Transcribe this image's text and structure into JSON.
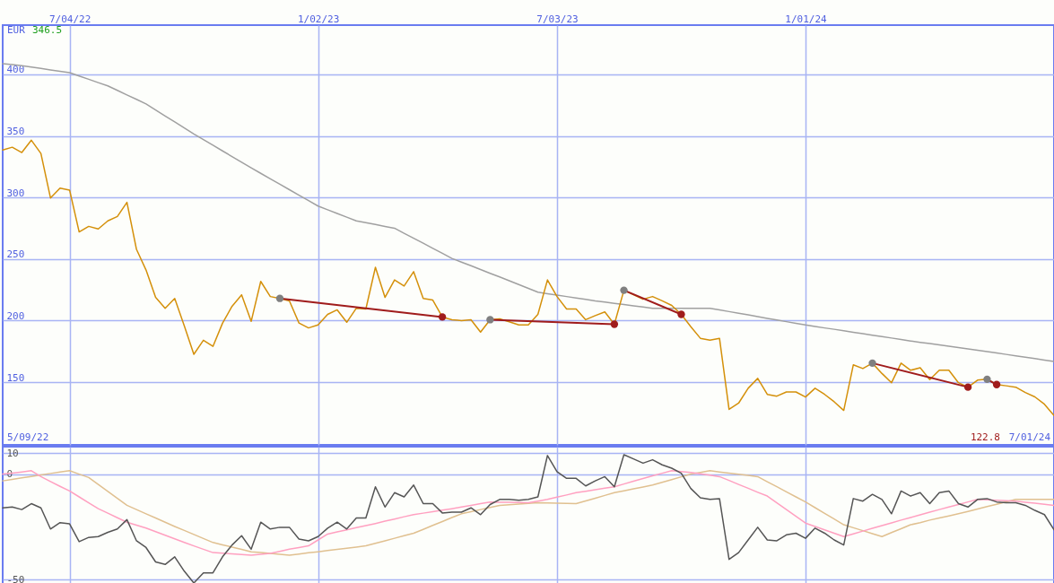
{
  "chart_data": [
    {
      "type": "line",
      "categories": [
        null,
        null,
        null,
        null,
        null,
        null,
        null,
        "7/04/22",
        null,
        null,
        null,
        null,
        null,
        null,
        null,
        null,
        null,
        null,
        null,
        null,
        null,
        null,
        null,
        null,
        null,
        null,
        null,
        null,
        null,
        null,
        null,
        null,
        null,
        "1/02/23",
        null,
        null,
        null,
        null,
        null,
        null,
        null,
        null,
        null,
        null,
        null,
        null,
        null,
        null,
        null,
        null,
        null,
        null,
        null,
        null,
        null,
        null,
        null,
        null,
        "7/03/23",
        null,
        null,
        null,
        null,
        null,
        null,
        null,
        null,
        null,
        null,
        null,
        null,
        null,
        null,
        null,
        null,
        null,
        null,
        null,
        null,
        null,
        null,
        null,
        null,
        null,
        "1/01/24",
        null,
        null,
        null,
        null,
        null,
        null,
        null,
        null,
        null,
        null,
        null,
        null,
        null,
        null,
        null,
        null,
        null,
        null,
        null,
        null,
        null,
        null,
        null,
        null,
        null,
        null
      ],
      "ylim": [
        99,
        440
      ],
      "yticks": [
        150,
        200,
        250,
        300,
        350,
        400
      ],
      "grid": true,
      "annotations": [
        "EUR",
        "346.5",
        "5/09/22",
        "122.8",
        "7/01/24"
      ],
      "series": [
        {
          "color": "#a0a0a0",
          "values": [
            408.7,
            407.9,
            407,
            405.9,
            404.8,
            403.6,
            402.5,
            401.4,
            398.7,
            396,
            393.3,
            390.6,
            387,
            383.3,
            379.7,
            376,
            371.1,
            366.2,
            361.4,
            356.5,
            351.6,
            347,
            342.4,
            337.8,
            333.2,
            328.6,
            324,
            319.6,
            315.1,
            310.7,
            306.3,
            301.9,
            297.4,
            293,
            290,
            287,
            284,
            281,
            279.5,
            278,
            276.5,
            275,
            270.9,
            266.8,
            262.8,
            258.7,
            254.6,
            250.5,
            247.5,
            244.5,
            241.4,
            238.4,
            235.4,
            232.3,
            229.2,
            226.1,
            223,
            221.8,
            220.7,
            219.5,
            218.3,
            217.2,
            216,
            215,
            214,
            213,
            212,
            211,
            210,
            210,
            210,
            210,
            210,
            210,
            210,
            208.6,
            207.3,
            205.9,
            204.6,
            203.2,
            201.8,
            200.5,
            199.1,
            197.8,
            196.4,
            195.2,
            194,
            192.9,
            191.7,
            190.5,
            189.3,
            188.1,
            186.9,
            185.8,
            184.6,
            183.4,
            182.3,
            181.3,
            180.2,
            179.1,
            178.1,
            177,
            175.9,
            174.7,
            173.6,
            172.5,
            171.3,
            170.2,
            169.1,
            167.9,
            166.8
          ]
        },
        {
          "color": "#d4900a",
          "values": [
            338.6,
            340.8,
            336.5,
            346.5,
            335.7,
            299.6,
            307.6,
            306,
            272,
            276.5,
            274.4,
            281,
            284.5,
            296,
            257.8,
            241,
            218.8,
            210,
            218,
            195.7,
            172.6,
            184,
            179,
            197.8,
            211.6,
            220.9,
            199.3,
            231.8,
            219.5,
            218,
            216,
            198,
            194,
            196.4,
            205,
            208.7,
            198.6,
            210,
            209.4,
            243.3,
            218.8,
            233,
            228,
            239.7,
            218,
            216.6,
            202.9,
            200.7,
            200,
            200.7,
            190.6,
            200.7,
            201.4,
            199,
            196.4,
            196.4,
            205,
            233,
            219.5,
            209.4,
            209.4,
            200.7,
            204,
            207,
            197,
            224.6,
            221,
            217.3,
            219.5,
            216,
            212.3,
            205,
            195,
            185.6,
            184,
            185.6,
            127.8,
            132.9,
            145,
            153,
            140,
            138.6,
            142,
            142,
            137.9,
            145,
            140,
            134,
            127,
            164,
            161,
            165.4,
            157,
            149.5,
            165.4,
            159.6,
            161.7,
            152,
            159.6,
            159.6,
            149.5,
            145.9,
            151.6,
            152.3,
            148,
            147,
            145.9,
            141.5,
            138,
            132,
            122.8
          ]
        },
        {
          "color": "#a01c1c",
          "marker": "circle",
          "values": [
            null,
            null,
            null,
            null,
            null,
            null,
            null,
            null,
            null,
            null,
            null,
            null,
            null,
            null,
            null,
            null,
            null,
            null,
            null,
            null,
            null,
            null,
            null,
            null,
            null,
            null,
            null,
            null,
            null,
            218,
            null,
            null,
            null,
            null,
            null,
            null,
            null,
            null,
            null,
            null,
            null,
            null,
            null,
            null,
            null,
            null,
            202.9,
            null,
            null,
            null,
            null,
            null,
            null,
            null,
            null,
            null,
            null,
            null,
            null,
            null,
            null,
            null,
            null,
            null,
            null,
            null,
            null,
            null,
            null,
            null,
            null,
            null,
            null,
            null,
            null,
            null,
            null,
            null,
            null,
            null,
            null,
            null,
            null,
            null,
            null,
            null,
            null,
            null,
            null,
            null,
            null,
            null,
            null,
            null,
            null,
            null,
            null,
            null,
            null,
            null,
            null,
            null,
            null,
            null,
            null,
            null,
            null,
            null,
            null,
            null,
            null
          ],
          "colors": [
            null,
            null,
            null,
            null,
            null,
            null,
            null,
            null,
            null,
            null,
            null,
            null,
            null,
            null,
            null,
            null,
            null,
            null,
            null,
            null,
            null,
            null,
            null,
            null,
            null,
            null,
            null,
            null,
            null,
            "#808080",
            null,
            null,
            null,
            null,
            null,
            null,
            null,
            null,
            null,
            null,
            null,
            null,
            null,
            null,
            null,
            null,
            "#a01c1c",
            null,
            null,
            null,
            null,
            null,
            null,
            null,
            null,
            null,
            null,
            null,
            null,
            null,
            null,
            null,
            null,
            null,
            null,
            null,
            null,
            null,
            null,
            null,
            null,
            null,
            null,
            null,
            null,
            null,
            null,
            null,
            null,
            null,
            null,
            null,
            null,
            null,
            null,
            null,
            null,
            null,
            null,
            null,
            null,
            null,
            null,
            null,
            null,
            null,
            null,
            null,
            null,
            null,
            null,
            null,
            null,
            null,
            null,
            null,
            null,
            null,
            null,
            null,
            null
          ]
        },
        {
          "color": "#a01c1c",
          "marker": "circle",
          "values": [
            null,
            null,
            null,
            null,
            null,
            null,
            null,
            null,
            null,
            null,
            null,
            null,
            null,
            null,
            null,
            null,
            null,
            null,
            null,
            null,
            null,
            null,
            null,
            null,
            null,
            null,
            null,
            null,
            null,
            null,
            null,
            null,
            null,
            null,
            null,
            null,
            null,
            null,
            null,
            null,
            null,
            null,
            null,
            null,
            null,
            null,
            null,
            null,
            null,
            null,
            null,
            200.7,
            null,
            null,
            null,
            null,
            null,
            null,
            null,
            null,
            null,
            null,
            null,
            null,
            197,
            null,
            null,
            null,
            null,
            null,
            null,
            null,
            null,
            null,
            null,
            null,
            null,
            null,
            null,
            null,
            null,
            null,
            null,
            null,
            null,
            null,
            null,
            null,
            null,
            null,
            null,
            null,
            null,
            null,
            null,
            null,
            null,
            null,
            null,
            null,
            null,
            null,
            null,
            null,
            null,
            null,
            null,
            null,
            null,
            null,
            null
          ],
          "colors": [
            null,
            null,
            null,
            null,
            null,
            null,
            null,
            null,
            null,
            null,
            null,
            null,
            null,
            null,
            null,
            null,
            null,
            null,
            null,
            null,
            null,
            null,
            null,
            null,
            null,
            null,
            null,
            null,
            null,
            null,
            null,
            null,
            null,
            null,
            null,
            null,
            null,
            null,
            null,
            null,
            null,
            null,
            null,
            null,
            null,
            null,
            null,
            null,
            null,
            null,
            null,
            "#808080",
            null,
            null,
            null,
            null,
            null,
            null,
            null,
            null,
            null,
            null,
            null,
            null,
            "#a01c1c",
            null,
            null,
            null,
            null,
            null,
            null,
            null,
            null,
            null,
            null,
            null,
            null,
            null,
            null,
            null,
            null,
            null,
            null,
            null,
            null,
            null,
            null,
            null,
            null,
            null,
            null,
            null,
            null,
            null,
            null,
            null,
            null,
            null,
            null,
            null,
            null,
            null,
            null,
            null,
            null,
            null,
            null,
            null,
            null,
            null,
            null
          ]
        },
        {
          "color": "#a01c1c",
          "marker": "circle",
          "values": [
            null,
            null,
            null,
            null,
            null,
            null,
            null,
            null,
            null,
            null,
            null,
            null,
            null,
            null,
            null,
            null,
            null,
            null,
            null,
            null,
            null,
            null,
            null,
            null,
            null,
            null,
            null,
            null,
            null,
            null,
            null,
            null,
            null,
            null,
            null,
            null,
            null,
            null,
            null,
            null,
            null,
            null,
            null,
            null,
            null,
            null,
            null,
            null,
            null,
            null,
            null,
            null,
            null,
            null,
            null,
            null,
            null,
            null,
            null,
            null,
            null,
            null,
            null,
            null,
            null,
            224.6,
            null,
            null,
            null,
            null,
            null,
            205,
            null,
            null,
            null,
            null,
            null,
            null,
            null,
            null,
            null,
            null,
            null,
            null,
            null,
            null,
            null,
            null,
            null,
            null,
            null,
            null,
            null,
            null,
            null,
            null,
            null,
            null,
            null,
            null,
            null,
            null,
            null,
            null,
            null,
            null,
            null,
            null,
            null,
            null,
            null
          ],
          "colors": [
            null,
            null,
            null,
            null,
            null,
            null,
            null,
            null,
            null,
            null,
            null,
            null,
            null,
            null,
            null,
            null,
            null,
            null,
            null,
            null,
            null,
            null,
            null,
            null,
            null,
            null,
            null,
            null,
            null,
            null,
            null,
            null,
            null,
            null,
            null,
            null,
            null,
            null,
            null,
            null,
            null,
            null,
            null,
            null,
            null,
            null,
            null,
            null,
            null,
            null,
            null,
            null,
            null,
            null,
            null,
            null,
            null,
            null,
            null,
            null,
            null,
            null,
            null,
            null,
            null,
            "#808080",
            null,
            null,
            null,
            null,
            null,
            "#a01c1c",
            null,
            null,
            null,
            null,
            null,
            null,
            null,
            null,
            null,
            null,
            null,
            null,
            null,
            null,
            null,
            null,
            null,
            null,
            null,
            null,
            null,
            null,
            null,
            null,
            null,
            null,
            null,
            null,
            null,
            null,
            null,
            null,
            null,
            null,
            null,
            null,
            null,
            null,
            null
          ]
        },
        {
          "color": "#a01c1c",
          "marker": "circle",
          "values": [
            null,
            null,
            null,
            null,
            null,
            null,
            null,
            null,
            null,
            null,
            null,
            null,
            null,
            null,
            null,
            null,
            null,
            null,
            null,
            null,
            null,
            null,
            null,
            null,
            null,
            null,
            null,
            null,
            null,
            null,
            null,
            null,
            null,
            null,
            null,
            null,
            null,
            null,
            null,
            null,
            null,
            null,
            null,
            null,
            null,
            null,
            null,
            null,
            null,
            null,
            null,
            null,
            null,
            null,
            null,
            null,
            null,
            null,
            null,
            null,
            null,
            null,
            null,
            null,
            null,
            null,
            null,
            null,
            null,
            null,
            null,
            null,
            null,
            null,
            null,
            null,
            null,
            null,
            null,
            null,
            null,
            null,
            null,
            null,
            null,
            null,
            null,
            null,
            null,
            null,
            null,
            165.4,
            null,
            null,
            null,
            null,
            null,
            null,
            null,
            null,
            null,
            145.9,
            null,
            null,
            null,
            null,
            null,
            null,
            null,
            null,
            null
          ],
          "colors": [
            null,
            null,
            null,
            null,
            null,
            null,
            null,
            null,
            null,
            null,
            null,
            null,
            null,
            null,
            null,
            null,
            null,
            null,
            null,
            null,
            null,
            null,
            null,
            null,
            null,
            null,
            null,
            null,
            null,
            null,
            null,
            null,
            null,
            null,
            null,
            null,
            null,
            null,
            null,
            null,
            null,
            null,
            null,
            null,
            null,
            null,
            null,
            null,
            null,
            null,
            null,
            null,
            null,
            null,
            null,
            null,
            null,
            null,
            null,
            null,
            null,
            null,
            null,
            null,
            null,
            null,
            null,
            null,
            null,
            null,
            null,
            null,
            null,
            null,
            null,
            null,
            null,
            null,
            null,
            null,
            null,
            null,
            null,
            null,
            null,
            null,
            null,
            null,
            null,
            null,
            null,
            "#808080",
            null,
            null,
            null,
            null,
            null,
            null,
            null,
            null,
            null,
            "#a01c1c",
            null,
            null,
            null,
            null,
            null,
            null,
            null,
            null,
            null
          ]
        },
        {
          "color": "#a01c1c",
          "marker": "circle",
          "values": [
            null,
            null,
            null,
            null,
            null,
            null,
            null,
            null,
            null,
            null,
            null,
            null,
            null,
            null,
            null,
            null,
            null,
            null,
            null,
            null,
            null,
            null,
            null,
            null,
            null,
            null,
            null,
            null,
            null,
            null,
            null,
            null,
            null,
            null,
            null,
            null,
            null,
            null,
            null,
            null,
            null,
            null,
            null,
            null,
            null,
            null,
            null,
            null,
            null,
            null,
            null,
            null,
            null,
            null,
            null,
            null,
            null,
            null,
            null,
            null,
            null,
            null,
            null,
            null,
            null,
            null,
            null,
            null,
            null,
            null,
            null,
            null,
            null,
            null,
            null,
            null,
            null,
            null,
            null,
            null,
            null,
            null,
            null,
            null,
            null,
            null,
            null,
            null,
            null,
            null,
            null,
            null,
            null,
            null,
            null,
            null,
            null,
            null,
            null,
            null,
            null,
            null,
            null,
            152.3,
            148,
            null,
            null,
            null,
            null,
            null,
            null
          ],
          "colors": [
            null,
            null,
            null,
            null,
            null,
            null,
            null,
            null,
            null,
            null,
            null,
            null,
            null,
            null,
            null,
            null,
            null,
            null,
            null,
            null,
            null,
            null,
            null,
            null,
            null,
            null,
            null,
            null,
            null,
            null,
            null,
            null,
            null,
            null,
            null,
            null,
            null,
            null,
            null,
            null,
            null,
            null,
            null,
            null,
            null,
            null,
            null,
            null,
            null,
            null,
            null,
            null,
            null,
            null,
            null,
            null,
            null,
            null,
            null,
            null,
            null,
            null,
            null,
            null,
            null,
            null,
            null,
            null,
            null,
            null,
            null,
            null,
            null,
            null,
            null,
            null,
            null,
            null,
            null,
            null,
            null,
            null,
            null,
            null,
            null,
            null,
            null,
            null,
            null,
            null,
            null,
            null,
            null,
            null,
            null,
            null,
            null,
            null,
            null,
            null,
            null,
            null,
            null,
            "#808080",
            "#a01c1c",
            null,
            null,
            null,
            null,
            null,
            null
          ]
        }
      ]
    },
    {
      "type": "line",
      "categories": [
        null,
        null,
        null,
        null,
        null,
        null,
        null,
        null,
        null,
        null,
        null,
        null,
        null,
        null,
        null,
        null,
        null,
        null,
        null,
        null,
        null,
        null,
        null,
        null,
        null,
        null,
        null,
        null,
        null,
        null,
        null,
        null,
        null,
        null,
        null,
        null,
        null,
        null,
        null,
        null,
        null,
        null,
        null,
        null,
        null,
        null,
        null,
        null,
        null,
        null,
        null,
        null,
        null,
        null,
        null,
        null,
        null,
        null,
        null,
        null,
        null,
        null,
        null,
        null,
        null,
        null,
        null,
        null,
        null,
        null,
        null,
        null,
        null,
        null,
        null,
        null,
        null,
        null,
        null,
        null,
        null,
        null,
        null,
        null,
        null,
        null,
        null,
        null,
        null,
        null,
        null,
        null,
        null,
        null,
        null,
        null,
        null,
        null,
        null,
        null,
        null,
        null,
        null,
        null,
        null,
        null,
        null,
        null,
        null,
        null,
        null
      ],
      "ylim": [
        -55,
        13
      ],
      "yticks": [
        10,
        0,
        -50
      ],
      "grid": true,
      "tick_labels": "y",
      "series": [
        {
          "color": "#e0c090",
          "values": [
            -3.2,
            -2.5,
            -1.8,
            -1.1,
            -0.4,
            0.3,
            1,
            1.6,
            0,
            -1.6,
            -4.9,
            -8.2,
            -11.5,
            -14.8,
            -16.8,
            -18.8,
            -20.8,
            -22.8,
            -24.8,
            -26.7,
            -28.6,
            -30.5,
            -32.4,
            -33.5,
            -34.6,
            -35.7,
            -36.8,
            -37.2,
            -37.6,
            -38,
            -38.4,
            -37.9,
            -37.3,
            -36.8,
            -36.2,
            -35.7,
            -35.1,
            -34.6,
            -34,
            -32.8,
            -31.6,
            -30.4,
            -29.2,
            -28,
            -26.2,
            -24.3,
            -22.5,
            -20.6,
            -18.8,
            -17.8,
            -16.8,
            -15.8,
            -14.8,
            -14.5,
            -14.2,
            -13.9,
            -13.6,
            -13.7,
            -13.8,
            -13.9,
            -14,
            -12.7,
            -11.4,
            -10.1,
            -8.8,
            -7.9,
            -7,
            -6.1,
            -5.2,
            -3.9,
            -2.6,
            -1.3,
            0,
            0.8,
            1.6,
            1,
            0.5,
            -0.1,
            -0.6,
            -1.2,
            -3.6,
            -6,
            -8.4,
            -10.8,
            -13.2,
            -15.9,
            -18.6,
            -21.3,
            -24,
            -25.4,
            -26.8,
            -28.2,
            -29.6,
            -27.7,
            -25.9,
            -24,
            -23,
            -21.8,
            -20.8,
            -19.8,
            -18.8,
            -17.7,
            -16.5,
            -15.4,
            -14.3,
            -13.1,
            -12,
            -12,
            -12,
            -12,
            -12
          ]
        },
        {
          "color": "#ffa0c0",
          "values": [
            0,
            0.5,
            1,
            1.6,
            -1.2,
            -3.5,
            -5.8,
            -8,
            -10.8,
            -13.6,
            -16.4,
            -18.5,
            -20.7,
            -22.8,
            -24.2,
            -25.6,
            -27.3,
            -29,
            -30.7,
            -32.4,
            -34,
            -35.6,
            -37.2,
            -37.5,
            -37.8,
            -38.1,
            -38.4,
            -38,
            -37.6,
            -36.6,
            -35.6,
            -34.8,
            -34,
            -31.2,
            -28.4,
            -27.4,
            -26.4,
            -25.4,
            -24.4,
            -23.4,
            -22.3,
            -21.3,
            -20.2,
            -19.2,
            -18.5,
            -17.8,
            -17.1,
            -16.4,
            -15.6,
            -14.8,
            -14,
            -13.2,
            -13.3,
            -13.4,
            -13.5,
            -13.6,
            -12.8,
            -12,
            -10.9,
            -9.9,
            -8.8,
            -8.1,
            -7.4,
            -6.7,
            -6,
            -4.7,
            -3.4,
            -2.1,
            -0.8,
            0.4,
            1.6,
            1.2,
            0.8,
            0.1,
            -0.5,
            -1.2,
            -3,
            -4.9,
            -6.7,
            -8.6,
            -10.4,
            -13.6,
            -16.8,
            -20,
            -23.2,
            -24.8,
            -26.4,
            -28,
            -29.6,
            -28.3,
            -27,
            -25.7,
            -24.4,
            -23.1,
            -21.8,
            -20.6,
            -19.3,
            -18,
            -16.8,
            -15.6,
            -14.4,
            -13.2,
            -12,
            -12.2,
            -12.4,
            -12.6,
            -12.8,
            -13.3,
            -13.8,
            -14.3,
            -14.8
          ]
        },
        {
          "color": "#555555",
          "values": [
            -16,
            -15.6,
            -16.8,
            -14,
            -16,
            -26,
            -23,
            -23.6,
            -32,
            -30,
            -29.6,
            -27.6,
            -26,
            -21.6,
            -31.6,
            -34.8,
            -41.6,
            -42.8,
            -39.2,
            -46,
            -51.6,
            -46.8,
            -46.8,
            -39.2,
            -33.6,
            -29.2,
            -35.6,
            -22.8,
            -26,
            -25.2,
            -25.2,
            -30.8,
            -31.6,
            -29.6,
            -25.6,
            -22.8,
            -26,
            -20.8,
            -20.8,
            -6,
            -15.6,
            -8.8,
            -10.8,
            -5.2,
            -14,
            -14,
            -18.4,
            -18,
            -18,
            -16,
            -19.2,
            -14.4,
            -12,
            -12,
            -12.4,
            -12,
            -10.8,
            8.8,
            1.2,
            -2,
            -2,
            -5.6,
            -3.2,
            -1.2,
            -6,
            9.2,
            7.2,
            5.2,
            6.8,
            4.4,
            2.8,
            0.4,
            -6.8,
            -11.2,
            -12,
            -11.6,
            -40.4,
            -37.2,
            -31.2,
            -25.2,
            -31.2,
            -31.6,
            -28.8,
            -28,
            -30.4,
            -25.6,
            -28,
            -31.2,
            -33.6,
            -11.6,
            -12.8,
            -9.6,
            -12,
            -18.8,
            -8,
            -10.4,
            -8.8,
            -14,
            -8.8,
            -8,
            -14,
            -15.6,
            -12,
            -11.6,
            -13.2,
            -13.6,
            -13.6,
            -14.8,
            -17.2,
            -19.2,
            -26.4
          ]
        }
      ]
    }
  ]
}
